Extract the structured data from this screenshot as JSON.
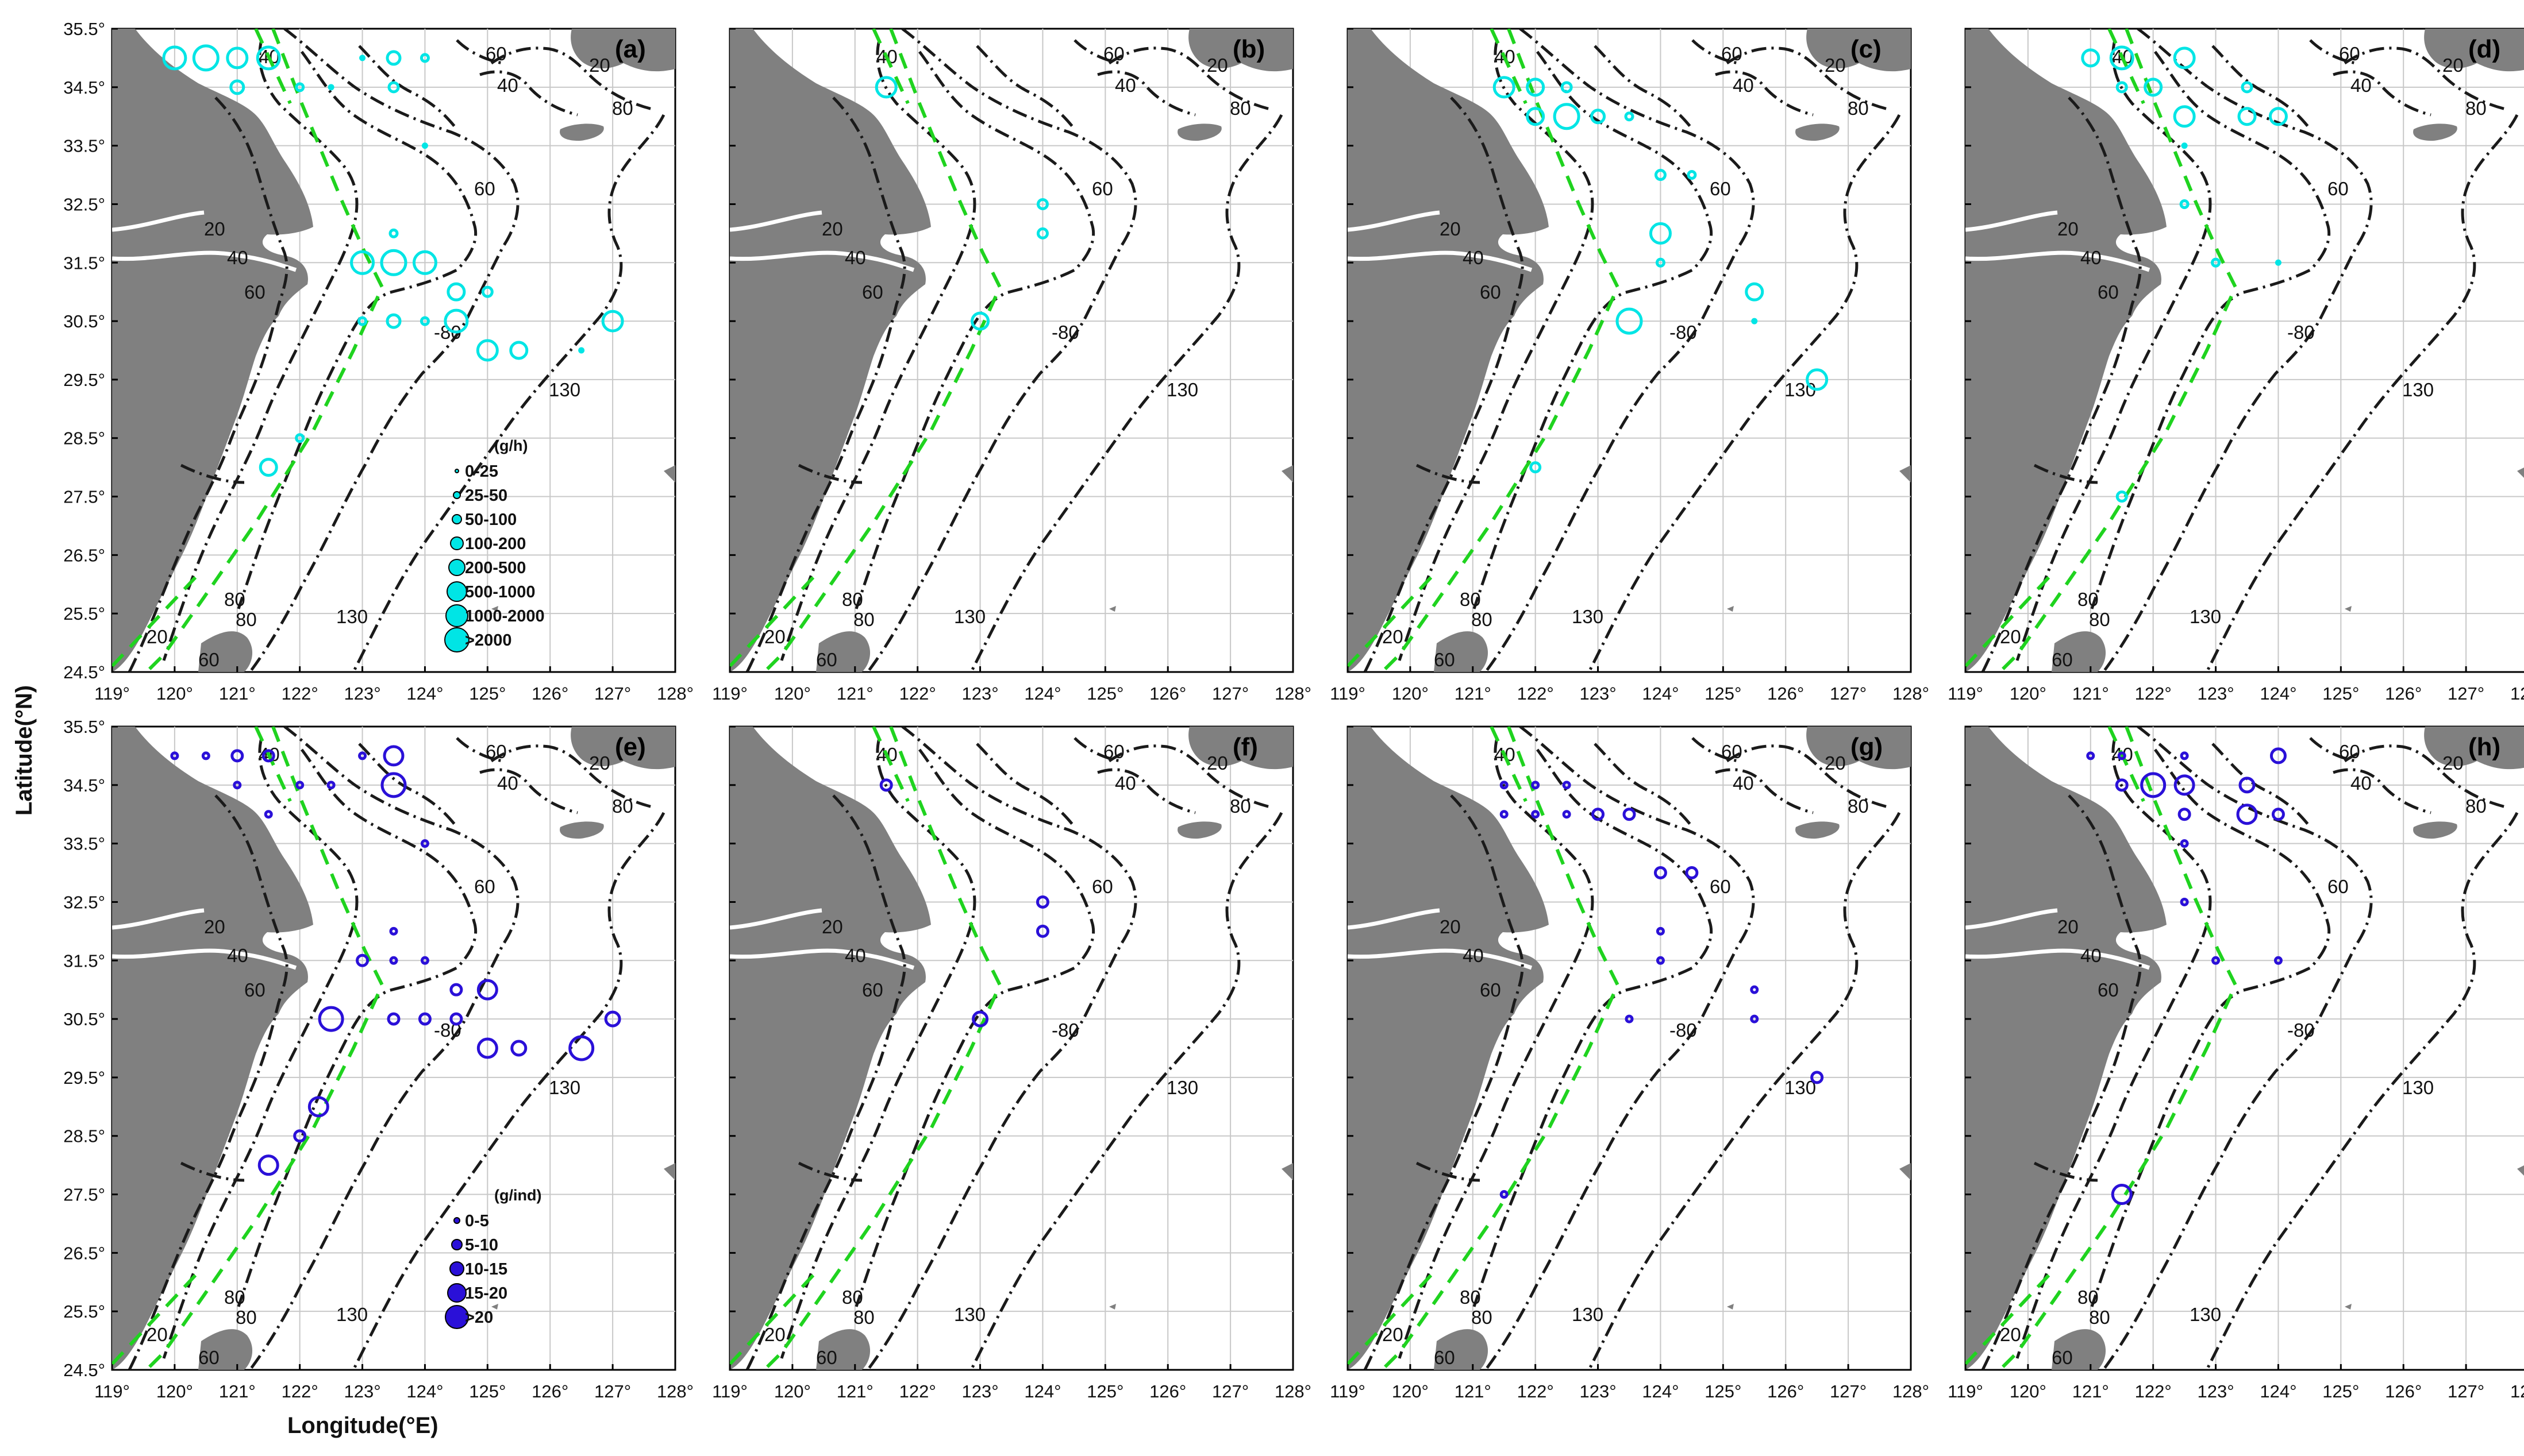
{
  "figure": {
    "x_axis_title": "Longitude(°E)",
    "y_axis_title": "Latitude(°N)",
    "lon_range": [
      119,
      128
    ],
    "lat_range": [
      24.5,
      35.5
    ],
    "lon_ticks": [
      "119°",
      "120°",
      "121°",
      "122°",
      "123°",
      "124°",
      "125°",
      "126°",
      "127°",
      "128°"
    ],
    "lat_ticks": [
      "35.5°",
      "34.5°",
      "33.5°",
      "32.5°",
      "31.5°",
      "30.5°",
      "29.5°",
      "28.5°",
      "27.5°",
      "26.5°",
      "25.5°",
      "24.5°"
    ],
    "colors": {
      "catch_rate": "#00e5e5",
      "mean_weight": "#2a10d8",
      "land": "#808080",
      "boundary": "#1fd31f"
    },
    "contour_labels": [
      "20",
      "40",
      "60",
      "80",
      "130"
    ]
  },
  "legends": {
    "catch_rate": {
      "unit": "(g/h)",
      "classes": [
        "0-25",
        "25-50",
        "50-100",
        "100-200",
        "200-500",
        "500-1000",
        "1000-2000",
        ">2000"
      ]
    },
    "mean_weight": {
      "unit": "(g/ind)",
      "classes": [
        "0-5",
        "5-10",
        "10-15",
        "15-20",
        ">20"
      ]
    }
  },
  "panels": [
    {
      "letter": "(a)",
      "variable": "catch_rate",
      "stations": [
        {
          "lon": 120.0,
          "lat": 35.0,
          "class": 6
        },
        {
          "lon": 120.5,
          "lat": 35.0,
          "class": 7
        },
        {
          "lon": 121.0,
          "lat": 35.0,
          "class": 5
        },
        {
          "lon": 121.5,
          "lat": 35.0,
          "class": 6
        },
        {
          "lon": 121.0,
          "lat": 34.5,
          "class": 3
        },
        {
          "lon": 122.0,
          "lat": 34.5,
          "class": 1
        },
        {
          "lon": 122.5,
          "lat": 34.5,
          "class": 0
        },
        {
          "lon": 123.0,
          "lat": 35.0,
          "class": 0
        },
        {
          "lon": 123.5,
          "lat": 35.0,
          "class": 3
        },
        {
          "lon": 123.5,
          "lat": 34.5,
          "class": 2
        },
        {
          "lon": 124.0,
          "lat": 35.0,
          "class": 1
        },
        {
          "lon": 124.0,
          "lat": 33.5,
          "class": 0
        },
        {
          "lon": 123.5,
          "lat": 32.0,
          "class": 1
        },
        {
          "lon": 123.0,
          "lat": 31.5,
          "class": 6
        },
        {
          "lon": 123.5,
          "lat": 31.5,
          "class": 7
        },
        {
          "lon": 124.0,
          "lat": 31.5,
          "class": 6
        },
        {
          "lon": 123.0,
          "lat": 30.5,
          "class": 1
        },
        {
          "lon": 123.5,
          "lat": 30.5,
          "class": 3
        },
        {
          "lon": 124.0,
          "lat": 30.5,
          "class": 1
        },
        {
          "lon": 124.5,
          "lat": 31.0,
          "class": 4
        },
        {
          "lon": 124.5,
          "lat": 30.5,
          "class": 6
        },
        {
          "lon": 125.0,
          "lat": 31.0,
          "class": 2
        },
        {
          "lon": 125.0,
          "lat": 30.0,
          "class": 5
        },
        {
          "lon": 125.5,
          "lat": 30.0,
          "class": 4
        },
        {
          "lon": 126.5,
          "lat": 30.0,
          "class": 0
        },
        {
          "lon": 127.0,
          "lat": 30.5,
          "class": 5
        },
        {
          "lon": 122.0,
          "lat": 28.5,
          "class": 1
        },
        {
          "lon": 121.5,
          "lat": 28.0,
          "class": 4
        }
      ]
    },
    {
      "letter": "(b)",
      "variable": "catch_rate",
      "stations": [
        {
          "lon": 121.5,
          "lat": 34.5,
          "class": 5
        },
        {
          "lon": 124.0,
          "lat": 32.5,
          "class": 2
        },
        {
          "lon": 124.0,
          "lat": 32.0,
          "class": 2
        },
        {
          "lon": 123.0,
          "lat": 30.5,
          "class": 4
        }
      ]
    },
    {
      "letter": "(c)",
      "variable": "catch_rate",
      "stations": [
        {
          "lon": 121.5,
          "lat": 34.5,
          "class": 5
        },
        {
          "lon": 122.0,
          "lat": 34.5,
          "class": 4
        },
        {
          "lon": 122.5,
          "lat": 34.5,
          "class": 2
        },
        {
          "lon": 122.0,
          "lat": 34.0,
          "class": 4
        },
        {
          "lon": 122.5,
          "lat": 34.0,
          "class": 7
        },
        {
          "lon": 123.0,
          "lat": 34.0,
          "class": 3
        },
        {
          "lon": 123.5,
          "lat": 34.0,
          "class": 1
        },
        {
          "lon": 124.0,
          "lat": 33.0,
          "class": 2
        },
        {
          "lon": 124.5,
          "lat": 33.0,
          "class": 1
        },
        {
          "lon": 124.0,
          "lat": 32.0,
          "class": 5
        },
        {
          "lon": 124.0,
          "lat": 31.5,
          "class": 1
        },
        {
          "lon": 123.5,
          "lat": 30.5,
          "class": 7
        },
        {
          "lon": 125.5,
          "lat": 31.0,
          "class": 4
        },
        {
          "lon": 125.5,
          "lat": 30.5,
          "class": 0
        },
        {
          "lon": 126.5,
          "lat": 29.5,
          "class": 5
        },
        {
          "lon": 122.0,
          "lat": 28.0,
          "class": 2
        }
      ]
    },
    {
      "letter": "(d)",
      "variable": "catch_rate",
      "stations": [
        {
          "lon": 121.0,
          "lat": 35.0,
          "class": 4
        },
        {
          "lon": 121.5,
          "lat": 35.0,
          "class": 6
        },
        {
          "lon": 122.5,
          "lat": 35.0,
          "class": 5
        },
        {
          "lon": 121.5,
          "lat": 34.5,
          "class": 2
        },
        {
          "lon": 122.0,
          "lat": 34.5,
          "class": 4
        },
        {
          "lon": 123.5,
          "lat": 34.5,
          "class": 2
        },
        {
          "lon": 122.5,
          "lat": 34.0,
          "class": 5
        },
        {
          "lon": 123.5,
          "lat": 34.0,
          "class": 4
        },
        {
          "lon": 124.0,
          "lat": 34.0,
          "class": 4
        },
        {
          "lon": 122.5,
          "lat": 33.5,
          "class": 0
        },
        {
          "lon": 122.5,
          "lat": 32.5,
          "class": 1
        },
        {
          "lon": 123.0,
          "lat": 31.5,
          "class": 1
        },
        {
          "lon": 124.0,
          "lat": 31.5,
          "class": 0
        },
        {
          "lon": 121.5,
          "lat": 27.5,
          "class": 2
        }
      ]
    },
    {
      "letter": "(e)",
      "variable": "mean_weight",
      "stations": [
        {
          "lon": 120.0,
          "lat": 35.0,
          "class": 0
        },
        {
          "lon": 120.5,
          "lat": 35.0,
          "class": 0
        },
        {
          "lon": 121.0,
          "lat": 35.0,
          "class": 1
        },
        {
          "lon": 121.5,
          "lat": 35.0,
          "class": 1
        },
        {
          "lon": 121.0,
          "lat": 34.5,
          "class": 0
        },
        {
          "lon": 122.0,
          "lat": 34.5,
          "class": 0
        },
        {
          "lon": 122.5,
          "lat": 34.5,
          "class": 0
        },
        {
          "lon": 123.0,
          "lat": 35.0,
          "class": 0
        },
        {
          "lon": 123.5,
          "lat": 35.0,
          "class": 3
        },
        {
          "lon": 123.5,
          "lat": 34.5,
          "class": 4
        },
        {
          "lon": 121.5,
          "lat": 34.0,
          "class": 0
        },
        {
          "lon": 124.0,
          "lat": 33.5,
          "class": 0
        },
        {
          "lon": 123.5,
          "lat": 32.0,
          "class": 0
        },
        {
          "lon": 123.0,
          "lat": 31.5,
          "class": 1
        },
        {
          "lon": 123.5,
          "lat": 31.5,
          "class": 0
        },
        {
          "lon": 124.0,
          "lat": 31.5,
          "class": 0
        },
        {
          "lon": 124.5,
          "lat": 31.0,
          "class": 1
        },
        {
          "lon": 125.0,
          "lat": 31.0,
          "class": 3
        },
        {
          "lon": 122.5,
          "lat": 30.5,
          "class": 4
        },
        {
          "lon": 123.5,
          "lat": 30.5,
          "class": 1
        },
        {
          "lon": 124.0,
          "lat": 30.5,
          "class": 1
        },
        {
          "lon": 124.5,
          "lat": 30.5,
          "class": 1
        },
        {
          "lon": 125.0,
          "lat": 30.0,
          "class": 3
        },
        {
          "lon": 125.5,
          "lat": 30.0,
          "class": 2
        },
        {
          "lon": 126.5,
          "lat": 30.0,
          "class": 4
        },
        {
          "lon": 127.0,
          "lat": 30.5,
          "class": 2
        },
        {
          "lon": 122.3,
          "lat": 29.0,
          "class": 3
        },
        {
          "lon": 122.0,
          "lat": 28.5,
          "class": 1
        },
        {
          "lon": 121.5,
          "lat": 28.0,
          "class": 3
        }
      ]
    },
    {
      "letter": "(f)",
      "variable": "mean_weight",
      "stations": [
        {
          "lon": 121.5,
          "lat": 34.5,
          "class": 1
        },
        {
          "lon": 124.0,
          "lat": 32.5,
          "class": 1
        },
        {
          "lon": 124.0,
          "lat": 32.0,
          "class": 1
        },
        {
          "lon": 123.0,
          "lat": 30.5,
          "class": 2
        }
      ]
    },
    {
      "letter": "(g)",
      "variable": "mean_weight",
      "stations": [
        {
          "lon": 121.5,
          "lat": 34.5,
          "class": 0
        },
        {
          "lon": 122.0,
          "lat": 34.5,
          "class": 0
        },
        {
          "lon": 122.5,
          "lat": 34.5,
          "class": 0
        },
        {
          "lon": 121.5,
          "lat": 34.0,
          "class": 0
        },
        {
          "lon": 122.0,
          "lat": 34.0,
          "class": 0
        },
        {
          "lon": 122.5,
          "lat": 34.0,
          "class": 0
        },
        {
          "lon": 123.0,
          "lat": 34.0,
          "class": 1
        },
        {
          "lon": 123.5,
          "lat": 34.0,
          "class": 1
        },
        {
          "lon": 124.0,
          "lat": 33.0,
          "class": 1
        },
        {
          "lon": 124.5,
          "lat": 33.0,
          "class": 1
        },
        {
          "lon": 124.0,
          "lat": 32.0,
          "class": 0
        },
        {
          "lon": 124.0,
          "lat": 31.5,
          "class": 0
        },
        {
          "lon": 123.5,
          "lat": 30.5,
          "class": 0
        },
        {
          "lon": 125.5,
          "lat": 31.0,
          "class": 0
        },
        {
          "lon": 125.5,
          "lat": 30.5,
          "class": 0
        },
        {
          "lon": 126.5,
          "lat": 29.5,
          "class": 1
        },
        {
          "lon": 121.5,
          "lat": 27.5,
          "class": 0
        }
      ]
    },
    {
      "letter": "(h)",
      "variable": "mean_weight",
      "stations": [
        {
          "lon": 121.0,
          "lat": 35.0,
          "class": 0
        },
        {
          "lon": 121.5,
          "lat": 35.0,
          "class": 0
        },
        {
          "lon": 122.5,
          "lat": 35.0,
          "class": 0
        },
        {
          "lon": 124.0,
          "lat": 35.0,
          "class": 2
        },
        {
          "lon": 121.5,
          "lat": 34.5,
          "class": 1
        },
        {
          "lon": 122.0,
          "lat": 34.5,
          "class": 4
        },
        {
          "lon": 122.5,
          "lat": 34.5,
          "class": 3
        },
        {
          "lon": 123.5,
          "lat": 34.5,
          "class": 2
        },
        {
          "lon": 122.5,
          "lat": 34.0,
          "class": 1
        },
        {
          "lon": 123.5,
          "lat": 34.0,
          "class": 3
        },
        {
          "lon": 124.0,
          "lat": 34.0,
          "class": 1
        },
        {
          "lon": 122.5,
          "lat": 33.5,
          "class": 0
        },
        {
          "lon": 122.5,
          "lat": 32.5,
          "class": 0
        },
        {
          "lon": 123.0,
          "lat": 31.5,
          "class": 0
        },
        {
          "lon": 124.0,
          "lat": 31.5,
          "class": 0
        },
        {
          "lon": 121.5,
          "lat": 27.5,
          "class": 3
        }
      ]
    }
  ]
}
